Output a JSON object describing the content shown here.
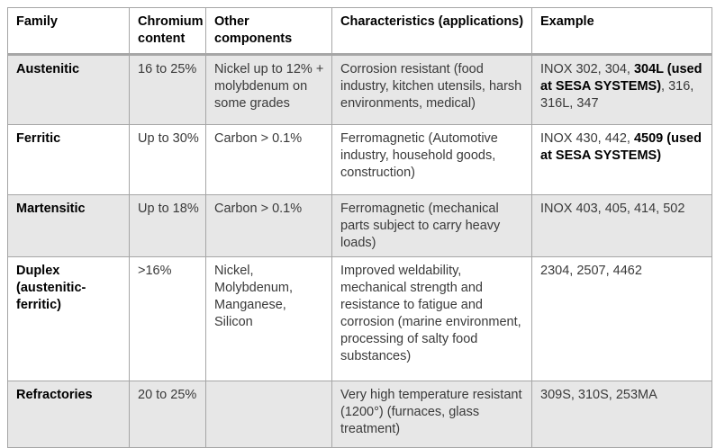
{
  "colors": {
    "row_shading": "#e7e7e7",
    "table_border": "#a6a6a6",
    "body_text": "#3a3a3a",
    "header_text": "#000000"
  },
  "table": {
    "columns": [
      {
        "label": "Family"
      },
      {
        "label": "Chromium content"
      },
      {
        "label": "Other components"
      },
      {
        "label": "Characteristics (applications)"
      },
      {
        "label": "Example"
      }
    ],
    "rows": [
      {
        "family": "Austenitic",
        "chromium_content": "16 to 25%",
        "other_components": "Nickel up to 12% + molybdenum on some grades",
        "characteristics": "Corrosion resistant (food industry, kitchen utensils, harsh environments, medical)",
        "example": {
          "prefix": "INOX 302, 304, ",
          "bold": "304L (used at SESA SYSTEMS)",
          "suffix": ", 316, 316L, 347"
        }
      },
      {
        "family": "Ferritic",
        "chromium_content": "Up to 30%",
        "other_components": "Carbon > 0.1%",
        "characteristics": "Ferromagnetic (Automotive industry, household goods, construction)",
        "example": {
          "prefix": "INOX 430, 442, ",
          "bold": "4509 (used at SESA SYSTEMS)",
          "suffix": ""
        }
      },
      {
        "family": "Martensitic",
        "chromium_content": "Up to 18%",
        "other_components": "Carbon > 0.1%",
        "characteristics": "Ferromagnetic (mechanical parts subject to carry heavy loads)",
        "example": {
          "prefix": "INOX 403, 405, 414, 502",
          "bold": "",
          "suffix": ""
        }
      },
      {
        "family": "Duplex (austenitic-ferritic)",
        "chromium_content": ">16%",
        "other_components": "Nickel, Molybdenum, Manganese, Silicon",
        "characteristics": "Improved weldability, mechanical strength and resistance to fatigue and corrosion (marine environment, processing of salty food substances)",
        "example": {
          "prefix": "2304, 2507, 4462",
          "bold": "",
          "suffix": ""
        }
      },
      {
        "family": "Refractories",
        "chromium_content": "20 to 25%",
        "other_components": "",
        "characteristics": "Very high temperature resistant (1200°) (furnaces, glass treatment)",
        "example": {
          "prefix": "309S, 310S, 253MA",
          "bold": "",
          "suffix": ""
        }
      }
    ]
  }
}
